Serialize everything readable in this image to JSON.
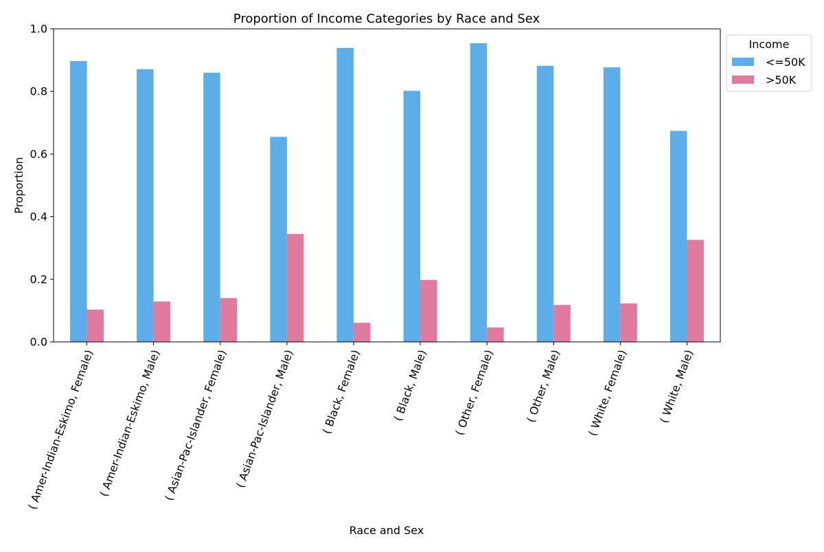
{
  "chart_data": {
    "type": "bar",
    "title": "Proportion of Income Categories by Race and Sex",
    "xlabel": "Race and Sex",
    "ylabel": "Proportion",
    "ylim": [
      0,
      1.0
    ],
    "yticks": [
      "0.0",
      "0.2",
      "0.4",
      "0.6",
      "0.8",
      "1.0"
    ],
    "grid": false,
    "legend_title": "Income",
    "legend_position": "outside-top-right",
    "categories": [
      "( Amer-Indian-Eskimo,  Female)",
      "( Amer-Indian-Eskimo,  Male)",
      "( Asian-Pac-Islander,  Female)",
      "( Asian-Pac-Islander,  Male)",
      "( Black,  Female)",
      "( Black,  Male)",
      "( Other,  Female)",
      "( Other,  Male)",
      "( White,  Female)",
      "( White,  Male)"
    ],
    "series": [
      {
        "name": "<=50K",
        "color": "#5DADE8",
        "values": [
          0.897,
          0.871,
          0.86,
          0.655,
          0.939,
          0.802,
          0.954,
          0.882,
          0.877,
          0.674
        ]
      },
      {
        "name": ">50K",
        "color": "#DE7B9E",
        "values": [
          0.103,
          0.129,
          0.14,
          0.345,
          0.061,
          0.198,
          0.046,
          0.118,
          0.123,
          0.326
        ]
      }
    ]
  }
}
